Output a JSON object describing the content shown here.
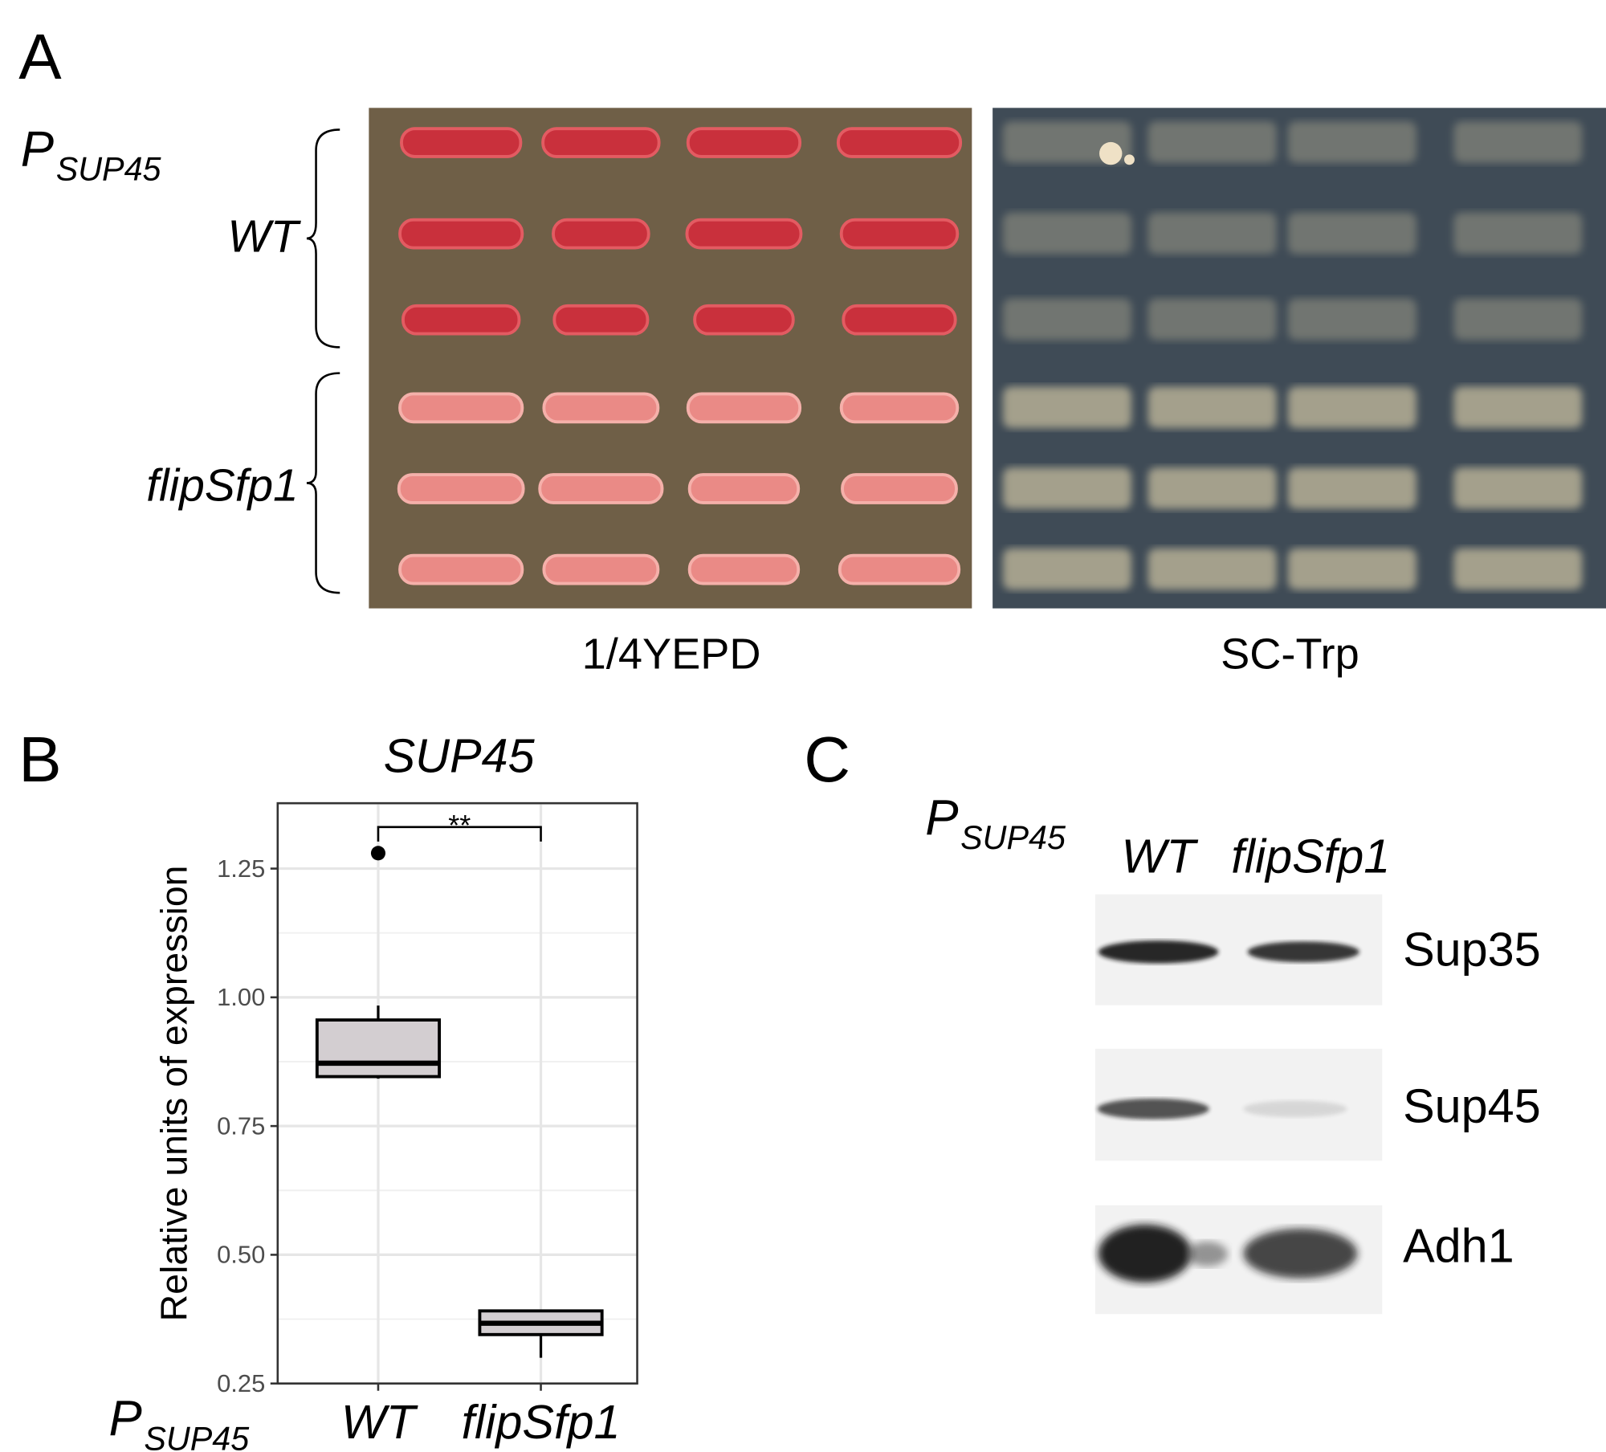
{
  "panel_a": {
    "label": "A",
    "promoter": {
      "letter": "P",
      "subscript": "SUP45"
    },
    "strains": [
      "WT",
      "flipSfp1"
    ],
    "media": [
      "1/4YEPD",
      "SC-Trp"
    ]
  },
  "chart_data": {
    "type": "box",
    "panel_label": "B",
    "title": "SUP45",
    "ylabel": "Relative units of expression",
    "xlabel": {
      "letter": "P",
      "subscript": "SUP45"
    },
    "categories": [
      "WT",
      "flipSfp1"
    ],
    "color": "#d3ced1",
    "boxes": [
      {
        "whisker_low": 0.842,
        "q1": 0.846,
        "median": 0.872,
        "q3": 0.956,
        "whisker_high": 0.984,
        "outliers": [
          1.28
        ]
      },
      {
        "whisker_low": 0.3,
        "q1": 0.345,
        "median": 0.367,
        "q3": 0.391,
        "whisker_high": 0.391,
        "outliers": []
      }
    ],
    "significance": "**",
    "ylim": [
      0.25,
      1.377
    ],
    "yticks": [
      {
        "value": 0.25,
        "label": "0.25"
      },
      {
        "value": 0.5,
        "label": "0.50"
      },
      {
        "value": 0.75,
        "label": "0.75"
      },
      {
        "value": 1,
        "label": "1.00"
      },
      {
        "value": 1.25,
        "label": "1.25"
      }
    ],
    "grid": true
  },
  "panel_c": {
    "label": "C",
    "promoter": {
      "letter": "P",
      "subscript": "SUP45"
    },
    "lanes": [
      "WT",
      "flipSfp1"
    ],
    "proteins": [
      "Sup35",
      "Sup45",
      "Adh1"
    ]
  }
}
